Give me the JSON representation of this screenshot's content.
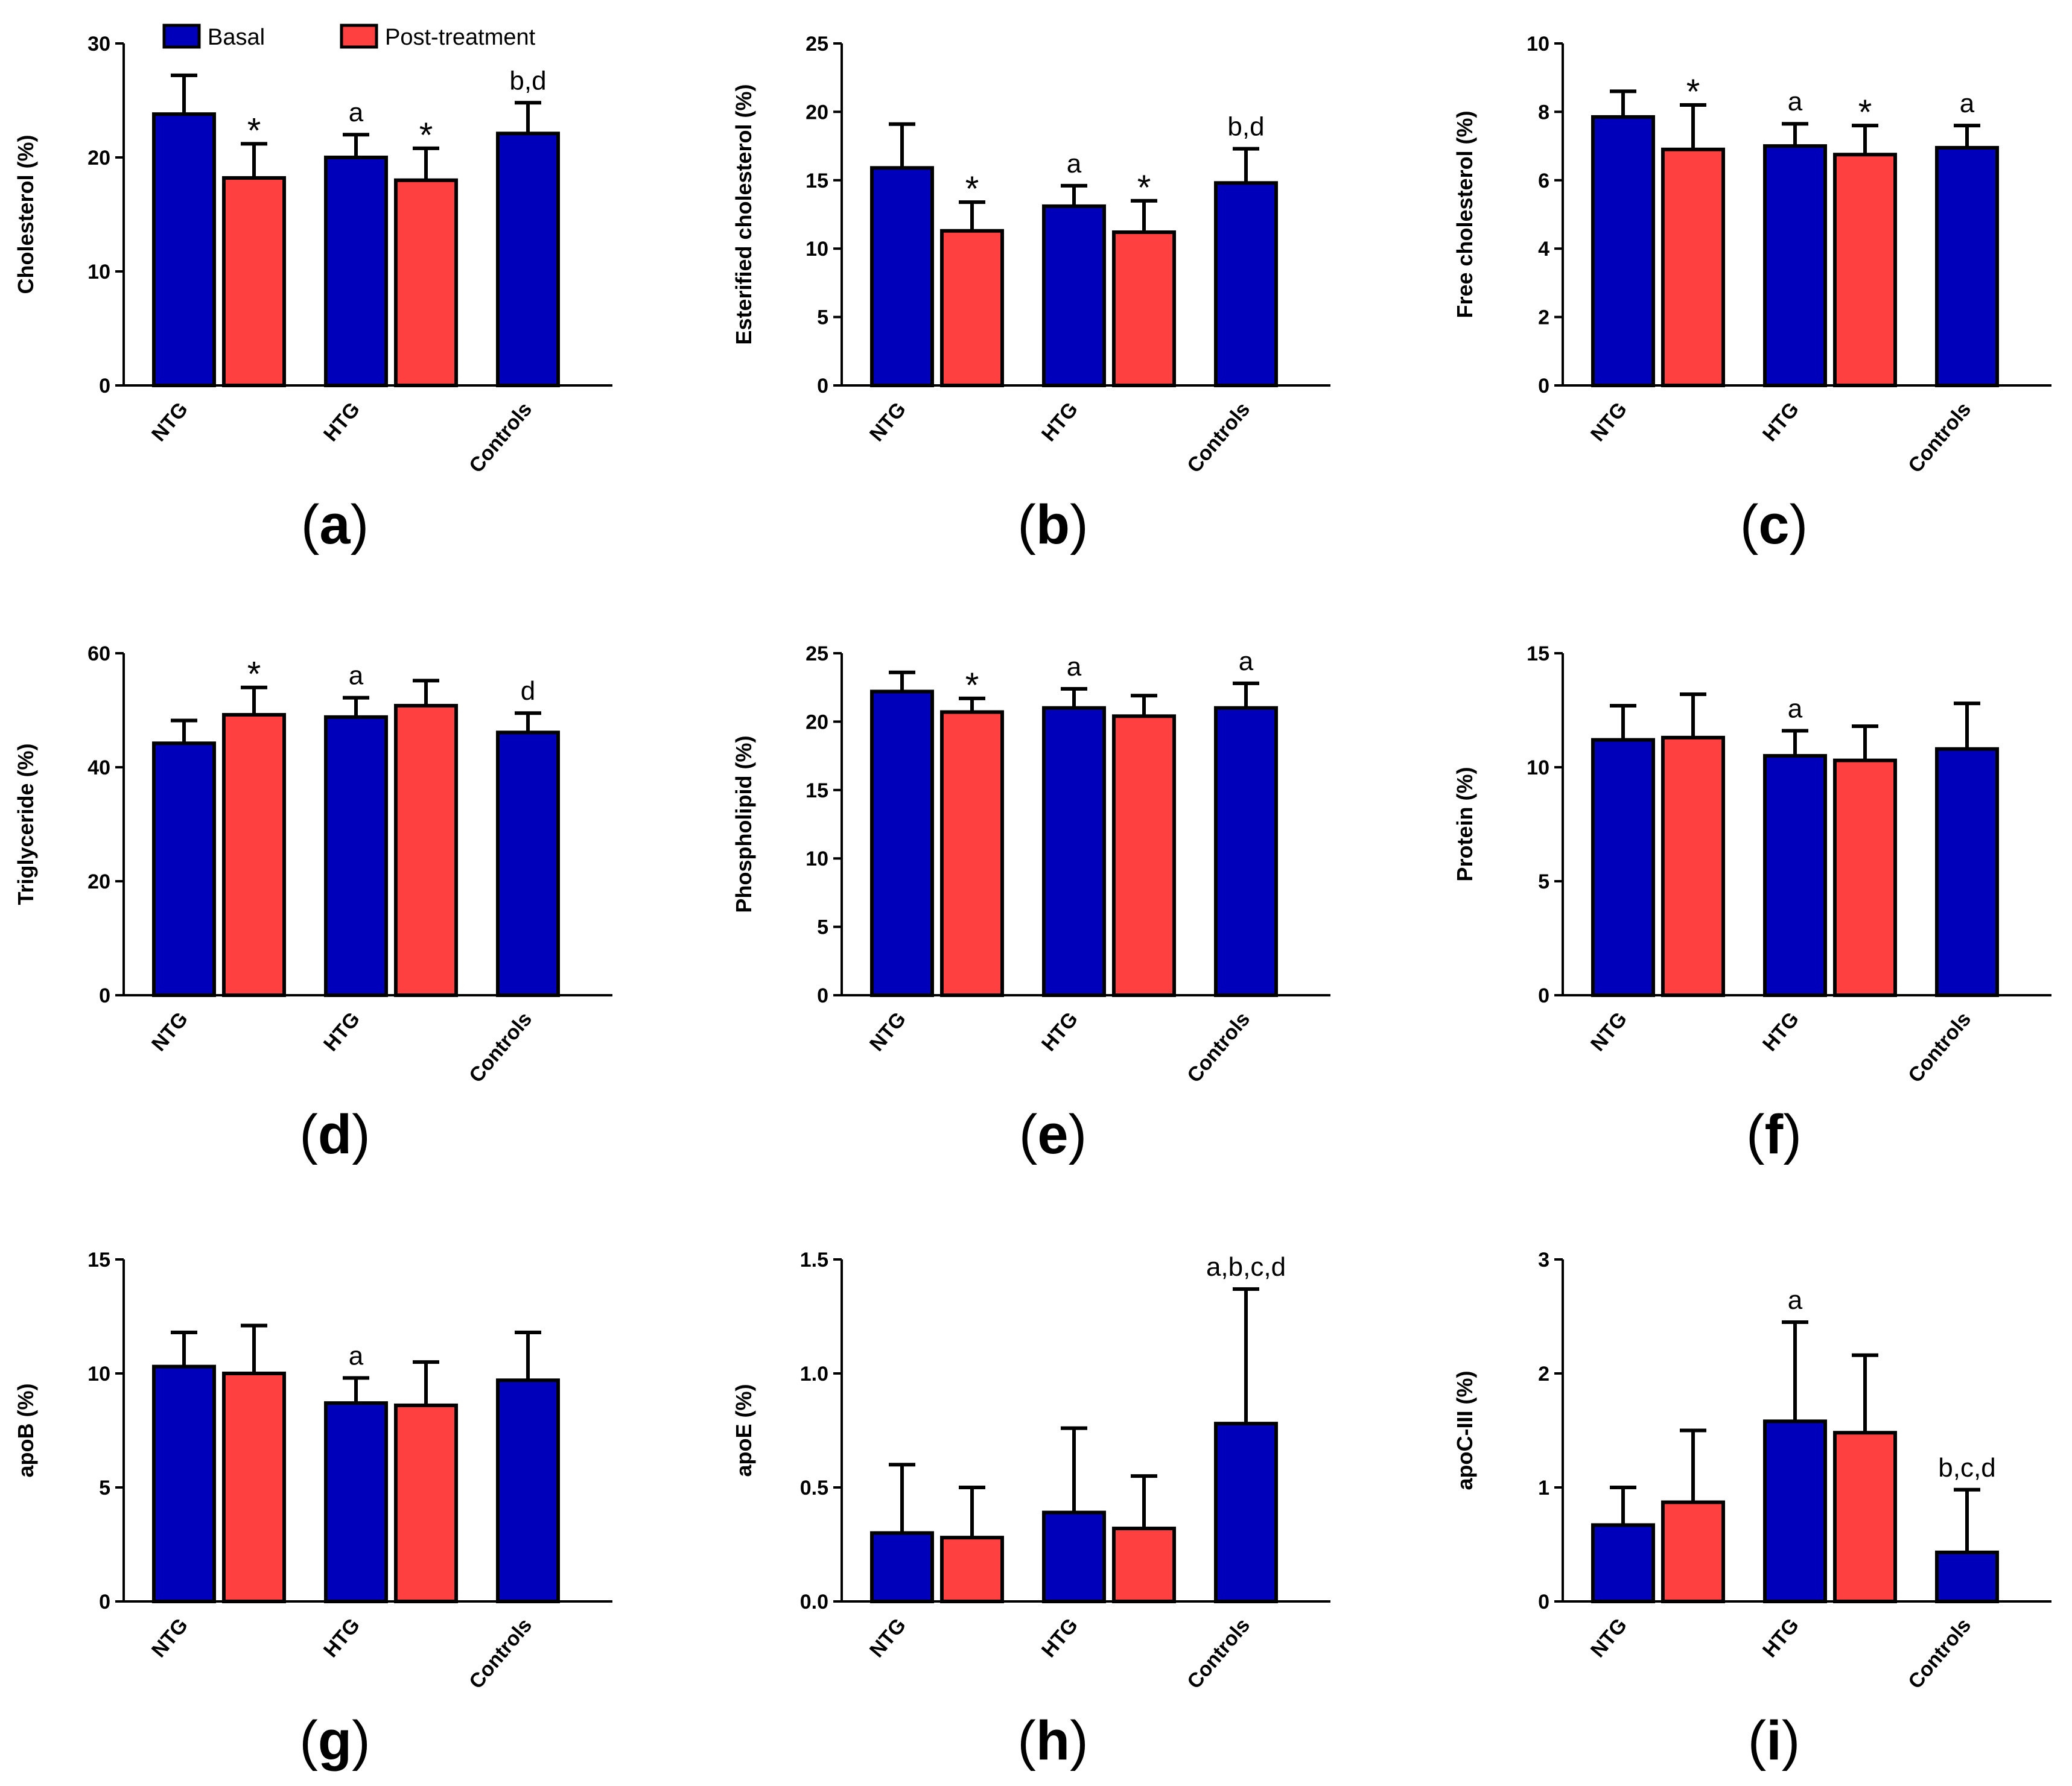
{
  "legend": {
    "entries": [
      {
        "label": "Basal",
        "color": "#0000BB"
      },
      {
        "label": "Post-treatment",
        "color": "#FF4040"
      }
    ]
  },
  "colors": {
    "basal": "#0000BB",
    "post": "#FF4040",
    "axis": "#000000"
  },
  "chart_data": [
    {
      "panel": "a",
      "type": "bar",
      "ylabel": "Cholesterol (%)",
      "ylim": [
        0,
        30
      ],
      "yticks": [
        0,
        10,
        20,
        30
      ],
      "categories": [
        "NTG",
        "HTG",
        "Controls"
      ],
      "series": [
        {
          "name": "Basal",
          "values": [
            23.8,
            20.0,
            22.1
          ],
          "errors": [
            27.2,
            22.0,
            24.8
          ]
        },
        {
          "name": "Post-treatment",
          "values": [
            18.2,
            18.0,
            null
          ],
          "errors": [
            21.2,
            20.8,
            null
          ]
        }
      ],
      "annotations": [
        {
          "category": 0,
          "series": 1,
          "text": "*"
        },
        {
          "category": 1,
          "series": 0,
          "text": "a"
        },
        {
          "category": 1,
          "series": 1,
          "text": "*"
        },
        {
          "category": 2,
          "series": 0,
          "text": "b,d"
        }
      ]
    },
    {
      "panel": "b",
      "type": "bar",
      "ylabel": "Esterified cholesterol (%)",
      "ylim": [
        0,
        25
      ],
      "yticks": [
        0,
        5,
        10,
        15,
        20,
        25
      ],
      "categories": [
        "NTG",
        "HTG",
        "Controls"
      ],
      "series": [
        {
          "name": "Basal",
          "values": [
            15.9,
            13.1,
            14.8
          ],
          "errors": [
            19.1,
            14.6,
            17.3
          ]
        },
        {
          "name": "Post-treatment",
          "values": [
            11.3,
            11.2,
            null
          ],
          "errors": [
            13.4,
            13.5,
            null
          ]
        }
      ],
      "annotations": [
        {
          "category": 0,
          "series": 1,
          "text": "*"
        },
        {
          "category": 1,
          "series": 0,
          "text": "a"
        },
        {
          "category": 1,
          "series": 1,
          "text": "*"
        },
        {
          "category": 2,
          "series": 0,
          "text": "b,d"
        }
      ]
    },
    {
      "panel": "c",
      "type": "bar",
      "ylabel": "Free cholesterol (%)",
      "ylim": [
        0,
        10
      ],
      "yticks": [
        0,
        2,
        4,
        6,
        8,
        10
      ],
      "categories": [
        "NTG",
        "HTG",
        "Controls"
      ],
      "series": [
        {
          "name": "Basal",
          "values": [
            7.85,
            7.0,
            6.95
          ],
          "errors": [
            8.6,
            7.65,
            7.6
          ]
        },
        {
          "name": "Post-treatment",
          "values": [
            6.9,
            6.75,
            null
          ],
          "errors": [
            8.2,
            7.6,
            null
          ]
        }
      ],
      "annotations": [
        {
          "category": 0,
          "series": 1,
          "text": "*"
        },
        {
          "category": 1,
          "series": 0,
          "text": "a"
        },
        {
          "category": 1,
          "series": 1,
          "text": "*"
        },
        {
          "category": 2,
          "series": 0,
          "text": "a"
        }
      ]
    },
    {
      "panel": "d",
      "type": "bar",
      "ylabel": "Triglyceride (%)",
      "ylim": [
        0,
        60
      ],
      "yticks": [
        0,
        20,
        40,
        60
      ],
      "categories": [
        "NTG",
        "HTG",
        "Controls"
      ],
      "series": [
        {
          "name": "Basal",
          "values": [
            44.2,
            48.8,
            46.1
          ],
          "errors": [
            48.2,
            52.2,
            49.5
          ]
        },
        {
          "name": "Post-treatment",
          "values": [
            49.2,
            50.8,
            null
          ],
          "errors": [
            54.0,
            55.2,
            null
          ]
        }
      ],
      "annotations": [
        {
          "category": 0,
          "series": 1,
          "text": "*"
        },
        {
          "category": 1,
          "series": 0,
          "text": "a"
        },
        {
          "category": 2,
          "series": 0,
          "text": "d"
        }
      ]
    },
    {
      "panel": "e",
      "type": "bar",
      "ylabel": "Phospholipid (%)",
      "ylim": [
        0,
        25
      ],
      "yticks": [
        0,
        5,
        10,
        15,
        20,
        25
      ],
      "categories": [
        "NTG",
        "HTG",
        "Controls"
      ],
      "series": [
        {
          "name": "Basal",
          "values": [
            22.2,
            21.0,
            21.0
          ],
          "errors": [
            23.6,
            22.4,
            22.8
          ]
        },
        {
          "name": "Post-treatment",
          "values": [
            20.7,
            20.4,
            null
          ],
          "errors": [
            21.7,
            21.9,
            null
          ]
        }
      ],
      "annotations": [
        {
          "category": 0,
          "series": 1,
          "text": "*"
        },
        {
          "category": 1,
          "series": 0,
          "text": "a"
        },
        {
          "category": 2,
          "series": 0,
          "text": "a"
        }
      ]
    },
    {
      "panel": "f",
      "type": "bar",
      "ylabel": "Protein (%)",
      "ylim": [
        0,
        15
      ],
      "yticks": [
        0,
        5,
        10,
        15
      ],
      "categories": [
        "NTG",
        "HTG",
        "Controls"
      ],
      "series": [
        {
          "name": "Basal",
          "values": [
            11.2,
            10.5,
            10.8
          ],
          "errors": [
            12.7,
            11.6,
            12.8
          ]
        },
        {
          "name": "Post-treatment",
          "values": [
            11.3,
            10.3,
            null
          ],
          "errors": [
            13.2,
            11.8,
            null
          ]
        }
      ],
      "annotations": [
        {
          "category": 1,
          "series": 0,
          "text": "a"
        }
      ]
    },
    {
      "panel": "g",
      "type": "bar",
      "ylabel": "apoB (%)",
      "ylim": [
        0,
        15
      ],
      "yticks": [
        0,
        5,
        10,
        15
      ],
      "categories": [
        "NTG",
        "HTG",
        "Controls"
      ],
      "series": [
        {
          "name": "Basal",
          "values": [
            10.3,
            8.7,
            9.7
          ],
          "errors": [
            11.8,
            9.8,
            11.8
          ]
        },
        {
          "name": "Post-treatment",
          "values": [
            10.0,
            8.6,
            null
          ],
          "errors": [
            12.1,
            10.5,
            null
          ]
        }
      ],
      "annotations": [
        {
          "category": 1,
          "series": 0,
          "text": "a"
        }
      ]
    },
    {
      "panel": "h",
      "type": "bar",
      "ylabel": "apoE (%)",
      "ylim": [
        0,
        1.5
      ],
      "yticks": [
        0.0,
        0.5,
        1.0,
        1.5
      ],
      "ytick_labels": [
        "0.0",
        "0.5",
        "1.0",
        "1.5"
      ],
      "categories": [
        "NTG",
        "HTG",
        "Controls"
      ],
      "series": [
        {
          "name": "Basal",
          "values": [
            0.3,
            0.39,
            0.78
          ],
          "errors": [
            0.6,
            0.76,
            1.37
          ]
        },
        {
          "name": "Post-treatment",
          "values": [
            0.28,
            0.32,
            null
          ],
          "errors": [
            0.5,
            0.55,
            null
          ]
        }
      ],
      "annotations": [
        {
          "category": 2,
          "series": 0,
          "text": "a,b,c,d"
        }
      ]
    },
    {
      "panel": "i",
      "type": "bar",
      "ylabel": "apoC-III (%)",
      "ylim": [
        0,
        3
      ],
      "yticks": [
        0,
        1,
        2,
        3
      ],
      "categories": [
        "NTG",
        "HTG",
        "Controls"
      ],
      "series": [
        {
          "name": "Basal",
          "values": [
            0.67,
            1.58,
            0.43
          ],
          "errors": [
            1.0,
            2.45,
            0.98
          ]
        },
        {
          "name": "Post-treatment",
          "values": [
            0.87,
            1.48,
            null
          ],
          "errors": [
            1.5,
            2.16,
            null
          ]
        }
      ],
      "annotations": [
        {
          "category": 1,
          "series": 0,
          "text": "a"
        },
        {
          "category": 2,
          "series": 0,
          "text": "b,c,d"
        }
      ]
    }
  ]
}
